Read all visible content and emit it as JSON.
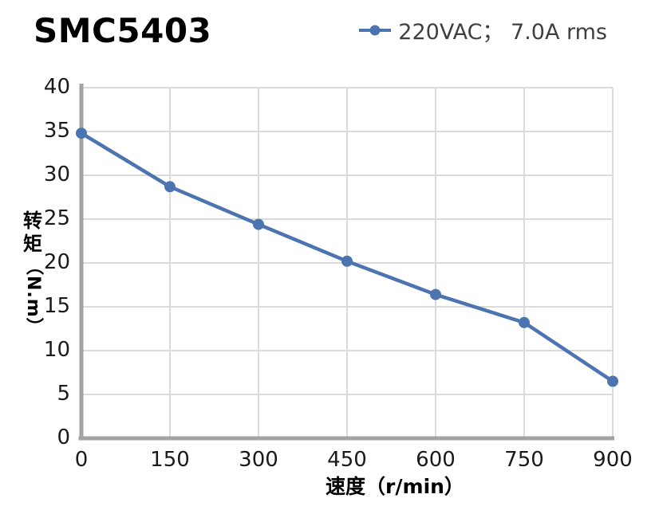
{
  "title": "SMC5403",
  "legend": {
    "label": "220VAC； 7.0A rms"
  },
  "x_axis": {
    "label": "速度（r/min）"
  },
  "y_axis": {
    "label_main": "转矩",
    "label_unit": "（N.m）",
    "label_full": "转矩（N.m）"
  },
  "chart_data": {
    "type": "line",
    "title": "SMC5403",
    "xlabel": "速度（r/min）",
    "ylabel": "转矩（N.m）",
    "x": [
      0,
      150,
      300,
      450,
      600,
      750,
      900
    ],
    "series": [
      {
        "name": "220VAC； 7.0A rms",
        "values": [
          34.8,
          28.7,
          24.4,
          20.2,
          16.4,
          13.2,
          6.5
        ],
        "color": "#4C74B0"
      }
    ],
    "xlim": [
      0,
      900
    ],
    "ylim": [
      0,
      40
    ],
    "x_ticks": [
      0,
      150,
      300,
      450,
      600,
      750,
      900
    ],
    "y_ticks": [
      0,
      5,
      10,
      15,
      20,
      25,
      30,
      35,
      40
    ],
    "grid": true,
    "legend_position": "top-right"
  },
  "colors": {
    "line": "#4C74B0",
    "grid": "#DBDBDB",
    "spine": "#A3A3A3",
    "tick_text": "#1A1A1A",
    "legend_text": "#3F3F3F",
    "title_text": "#000000"
  }
}
